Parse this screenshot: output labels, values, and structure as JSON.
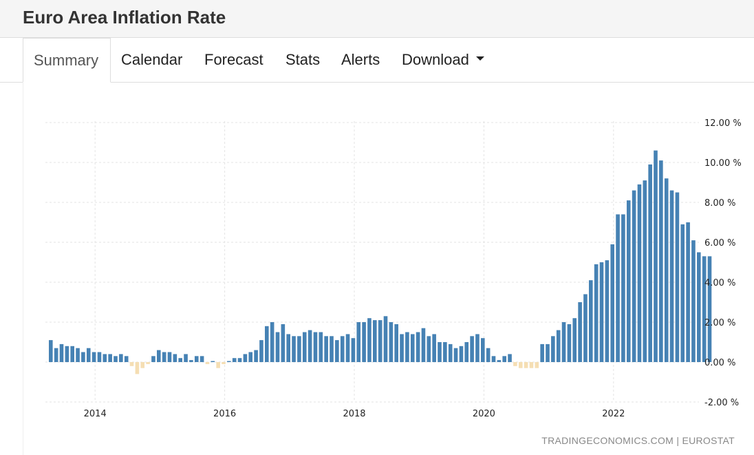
{
  "header": {
    "title": "Euro Area Inflation Rate"
  },
  "tabs": [
    {
      "label": "Summary",
      "active": true
    },
    {
      "label": "Calendar",
      "active": false
    },
    {
      "label": "Forecast",
      "active": false
    },
    {
      "label": "Stats",
      "active": false
    },
    {
      "label": "Alerts",
      "active": false
    },
    {
      "label": "Download",
      "active": false,
      "dropdown": true
    }
  ],
  "source": "TRADINGECONOMICS.COM  |  EUROSTAT",
  "chart_data": {
    "type": "bar",
    "start": "2013-09",
    "y_unit": "%",
    "ylim": [
      -2,
      12
    ],
    "y_ticks": [
      "12.00 %",
      "10.00 %",
      "8.00 %",
      "6.00 %",
      "4.00 %",
      "2.00 %",
      "0.00 %",
      "-2.00 %"
    ],
    "x_ticks": [
      "2014",
      "2016",
      "2018",
      "2020",
      "2022"
    ],
    "grid": true,
    "colors": {
      "positive": "#4682b4",
      "negative": "#f5deb3"
    },
    "values": [
      1.1,
      0.7,
      0.9,
      0.8,
      0.8,
      0.7,
      0.5,
      0.7,
      0.5,
      0.5,
      0.4,
      0.4,
      0.3,
      0.4,
      0.3,
      -0.2,
      -0.6,
      -0.3,
      -0.1,
      0.3,
      0.6,
      0.5,
      0.5,
      0.4,
      0.2,
      0.4,
      0.1,
      0.3,
      0.3,
      -0.1,
      0.0,
      -0.3,
      -0.1,
      0.0,
      0.2,
      0.2,
      0.4,
      0.5,
      0.6,
      1.1,
      1.8,
      2.0,
      1.5,
      1.9,
      1.4,
      1.3,
      1.3,
      1.5,
      1.6,
      1.5,
      1.5,
      1.3,
      1.3,
      1.1,
      1.3,
      1.4,
      1.2,
      2.0,
      2.0,
      2.2,
      2.1,
      2.1,
      2.3,
      2.0,
      1.9,
      1.4,
      1.5,
      1.4,
      1.5,
      1.7,
      1.3,
      1.4,
      1.0,
      1.0,
      0.9,
      0.7,
      0.8,
      1.0,
      1.3,
      1.4,
      1.2,
      0.7,
      0.3,
      0.1,
      0.3,
      0.4,
      -0.2,
      -0.3,
      -0.3,
      -0.3,
      -0.3,
      0.9,
      0.9,
      1.3,
      1.6,
      2.0,
      1.9,
      2.2,
      3.0,
      3.4,
      4.1,
      4.9,
      5.0,
      5.1,
      5.9,
      7.4,
      7.4,
      8.1,
      8.6,
      8.9,
      9.1,
      9.9,
      10.6,
      10.1,
      9.2,
      8.6,
      8.5,
      6.9,
      7.0,
      6.1,
      5.5,
      5.3,
      5.3
    ]
  }
}
